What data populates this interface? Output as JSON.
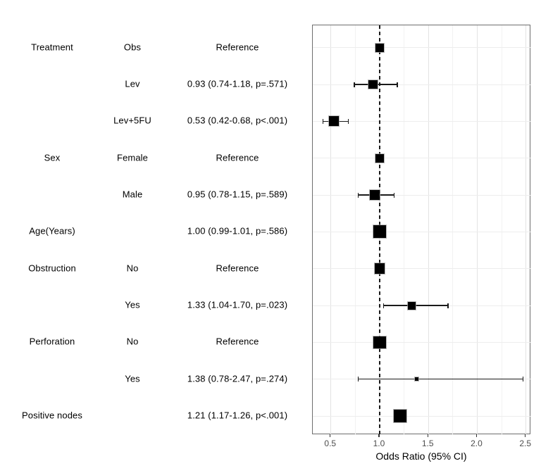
{
  "chart_data": {
    "type": "forest",
    "title": "",
    "xlabel": "Odds Ratio (95% CI)",
    "x_ticks": [
      0.5,
      1.0,
      1.5,
      2.0,
      2.5
    ],
    "x_minor_ticks": [
      0.75,
      1.25,
      1.75,
      2.25
    ],
    "xlim": [
      0.314,
      2.553
    ],
    "reference_line": 1.0,
    "grid": "major+minor",
    "legend": "none",
    "rows": [
      {
        "variable": "Treatment",
        "level": "Obs",
        "estimate_label": "Reference",
        "or": 1.0,
        "ci_low": null,
        "ci_high": null,
        "reference": true,
        "marker_size": 12
      },
      {
        "variable": "",
        "level": "Lev",
        "estimate_label": "0.93 (0.74-1.18, p=.571)",
        "or": 0.93,
        "ci_low": 0.74,
        "ci_high": 1.18,
        "reference": false,
        "marker_size": 12.5
      },
      {
        "variable": "",
        "level": "Lev+5FU",
        "estimate_label": "0.53 (0.42-0.68, p<.001)",
        "or": 0.53,
        "ci_low": 0.42,
        "ci_high": 0.68,
        "reference": false,
        "marker_size": 14
      },
      {
        "variable": "Sex",
        "level": "Female",
        "estimate_label": "Reference",
        "or": 1.0,
        "ci_low": null,
        "ci_high": null,
        "reference": true,
        "marker_size": 12
      },
      {
        "variable": "",
        "level": "Male",
        "estimate_label": "0.95 (0.78-1.15, p=.589)",
        "or": 0.95,
        "ci_low": 0.78,
        "ci_high": 1.15,
        "reference": false,
        "marker_size": 13.5
      },
      {
        "variable": "Age(Years)",
        "level": "",
        "estimate_label": "1.00 (0.99-1.01, p=.586)",
        "or": 1.0,
        "ci_low": 0.99,
        "ci_high": 1.01,
        "reference": false,
        "marker_size": 18
      },
      {
        "variable": "Obstruction",
        "level": "No",
        "estimate_label": "Reference",
        "or": 1.0,
        "ci_low": null,
        "ci_high": null,
        "reference": true,
        "marker_size": 14.5
      },
      {
        "variable": "",
        "level": "Yes",
        "estimate_label": "1.33 (1.04-1.70, p=.023)",
        "or": 1.33,
        "ci_low": 1.04,
        "ci_high": 1.7,
        "reference": false,
        "marker_size": 11
      },
      {
        "variable": "Perforation",
        "level": "No",
        "estimate_label": "Reference",
        "or": 1.0,
        "ci_low": null,
        "ci_high": null,
        "reference": true,
        "marker_size": 17.5
      },
      {
        "variable": "",
        "level": "Yes",
        "estimate_label": "1.38 (0.78-2.47, p=.274)",
        "or": 1.38,
        "ci_low": 0.78,
        "ci_high": 2.47,
        "reference": false,
        "marker_size": 4.5
      },
      {
        "variable": "Positive nodes",
        "level": "",
        "estimate_label": "1.21 (1.17-1.26, p<.001)",
        "or": 1.21,
        "ci_low": 1.17,
        "ci_high": 1.26,
        "reference": false,
        "marker_size": 18
      }
    ],
    "colors": {
      "background": "#ffffff",
      "marker": "#000000",
      "ci_line": "#1a1a1a",
      "reference_line": "#1a1a1a",
      "grid_major": "#e3e3e3",
      "grid_minor": "#f2f2f2",
      "row_grid": "#ededed",
      "panel_border": "#6e6e6e",
      "tick": "#333333",
      "tick_label": "#4d4d4d",
      "text": "#000000"
    }
  }
}
